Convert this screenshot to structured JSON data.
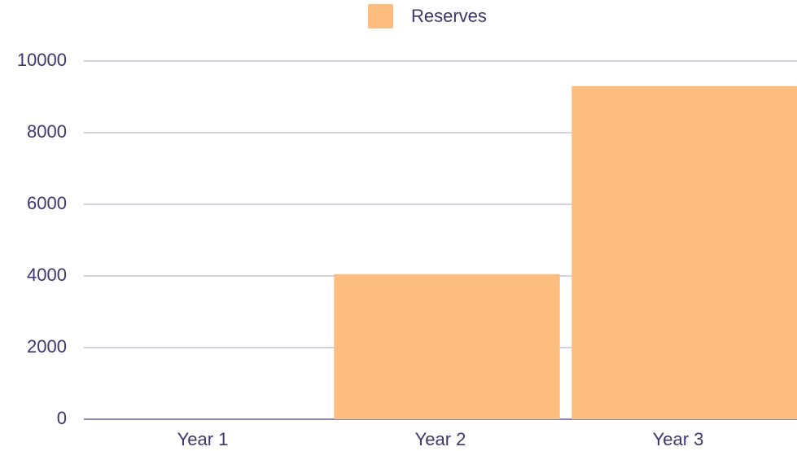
{
  "chart_data": {
    "type": "bar",
    "categories": [
      "Year 1",
      "Year 2",
      "Year 3"
    ],
    "series": [
      {
        "name": "Reserves",
        "color": "#fcbd7e",
        "values": [
          0,
          4050,
          9300
        ]
      }
    ],
    "ylim": [
      0,
      10000
    ],
    "yticks": [
      0,
      2000,
      4000,
      6000,
      8000,
      10000
    ],
    "grid": true,
    "legend": "top"
  }
}
